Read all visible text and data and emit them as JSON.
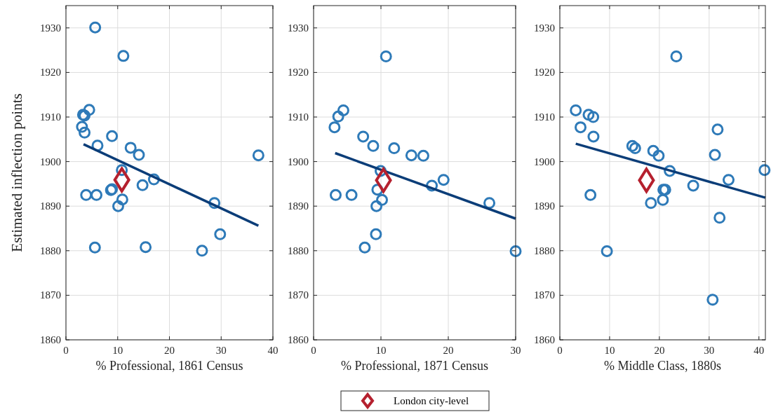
{
  "chart_data": [
    {
      "type": "scatter",
      "ylabel": "Estimated inflection points",
      "xlabel": "% Professional, 1861 Census",
      "xlim": [
        0,
        40
      ],
      "xticks": [
        0,
        10,
        20,
        30,
        40
      ],
      "ylim": [
        1860,
        1935
      ],
      "yticks": [
        1860,
        1870,
        1880,
        1890,
        1900,
        1910,
        1920,
        1930
      ],
      "grid": true,
      "series": [
        {
          "type": "scatter",
          "marker": "circle",
          "color": "#2e7ab8",
          "x": [
            5.65,
            11.1,
            4.5,
            3.3,
            3.6,
            3.1,
            3.6,
            8.9,
            6.1,
            12.5,
            14.1,
            37.2,
            10.8,
            17.0,
            14.8,
            8.9,
            8.7,
            3.9,
            5.9,
            10.9,
            10.1,
            28.7,
            29.8,
            5.6,
            15.4,
            26.3
          ],
          "values": [
            1930.1,
            1923.7,
            1911.6,
            1910.5,
            1910.3,
            1907.8,
            1906.5,
            1905.7,
            1903.6,
            1903.1,
            1901.5,
            1901.4,
            1898.1,
            1896.0,
            1894.7,
            1893.8,
            1893.6,
            1892.5,
            1892.5,
            1891.5,
            1890.0,
            1890.7,
            1883.7,
            1880.7,
            1880.8,
            1880.0
          ]
        },
        {
          "type": "line",
          "color": "#0b3d78",
          "line_style": "solid",
          "x": [
            3.4,
            37.2
          ],
          "values": [
            1903.9,
            1885.6
          ]
        },
        {
          "type": "scatter",
          "marker": "diamond",
          "color": "#b5202e",
          "x": [
            10.8
          ],
          "values": [
            1895.9
          ]
        }
      ]
    },
    {
      "type": "scatter",
      "xlabel": "% Professional, 1871 Census",
      "xlim": [
        0,
        30
      ],
      "xticks": [
        0,
        10,
        20,
        30
      ],
      "ylim": [
        1860,
        1935
      ],
      "yticks": [
        1860,
        1870,
        1880,
        1890,
        1900,
        1910,
        1920,
        1930
      ],
      "grid": true,
      "legend": "bottom",
      "series": [
        {
          "type": "scatter",
          "marker": "circle",
          "color": "#2e7ab8",
          "x": [
            10.75,
            4.42,
            3.66,
            3.11,
            7.36,
            8.85,
            11.96,
            14.52,
            16.3,
            9.95,
            19.3,
            17.56,
            9.47,
            3.28,
            5.63,
            10.16,
            9.33,
            26.1,
            9.26,
            7.6,
            30.0
          ],
          "values": [
            1923.6,
            1911.5,
            1910.1,
            1907.7,
            1905.6,
            1903.5,
            1903.0,
            1901.4,
            1901.3,
            1897.9,
            1895.9,
            1894.6,
            1893.7,
            1892.5,
            1892.5,
            1891.4,
            1890.0,
            1890.7,
            1883.7,
            1880.7,
            1879.9
          ]
        },
        {
          "type": "line",
          "color": "#0b3d78",
          "line_style": "solid",
          "x": [
            3.2,
            30.0
          ],
          "values": [
            1901.9,
            1887.2
          ]
        },
        {
          "type": "scatter",
          "marker": "diamond",
          "color": "#b5202e",
          "name": "London city-level",
          "x": [
            10.37
          ],
          "values": [
            1895.8
          ]
        }
      ]
    },
    {
      "type": "scatter",
      "xlabel": "% Middle Class, 1880s",
      "xlim": [
        0,
        41.3
      ],
      "xticks": [
        0,
        10,
        20,
        30,
        40
      ],
      "ylim": [
        1860,
        1935
      ],
      "yticks": [
        1860,
        1870,
        1880,
        1890,
        1900,
        1910,
        1920,
        1930
      ],
      "grid": true,
      "series": [
        {
          "type": "scatter",
          "marker": "circle",
          "color": "#2e7ab8",
          "x": [
            23.4,
            3.2,
            5.77,
            6.71,
            4.16,
            6.76,
            31.7,
            14.56,
            15.13,
            18.77,
            19.86,
            31.16,
            22.08,
            41.13,
            33.9,
            26.8,
            20.8,
            21.18,
            6.15,
            20.7,
            18.3,
            32.1,
            9.46,
            30.7
          ],
          "values": [
            1923.6,
            1911.5,
            1910.5,
            1910.0,
            1907.7,
            1905.6,
            1907.2,
            1903.5,
            1903.0,
            1902.4,
            1901.3,
            1901.5,
            1897.9,
            1898.1,
            1895.9,
            1894.6,
            1893.7,
            1893.7,
            1892.5,
            1891.4,
            1890.7,
            1887.4,
            1879.9,
            1869.0
          ]
        },
        {
          "type": "line",
          "color": "#0b3d78",
          "line_style": "solid",
          "x": [
            3.2,
            41.3
          ],
          "values": [
            1904.0,
            1891.9
          ]
        },
        {
          "type": "scatter",
          "marker": "diamond",
          "color": "#b5202e",
          "x": [
            17.4
          ],
          "values": [
            1895.8
          ]
        }
      ]
    }
  ]
}
